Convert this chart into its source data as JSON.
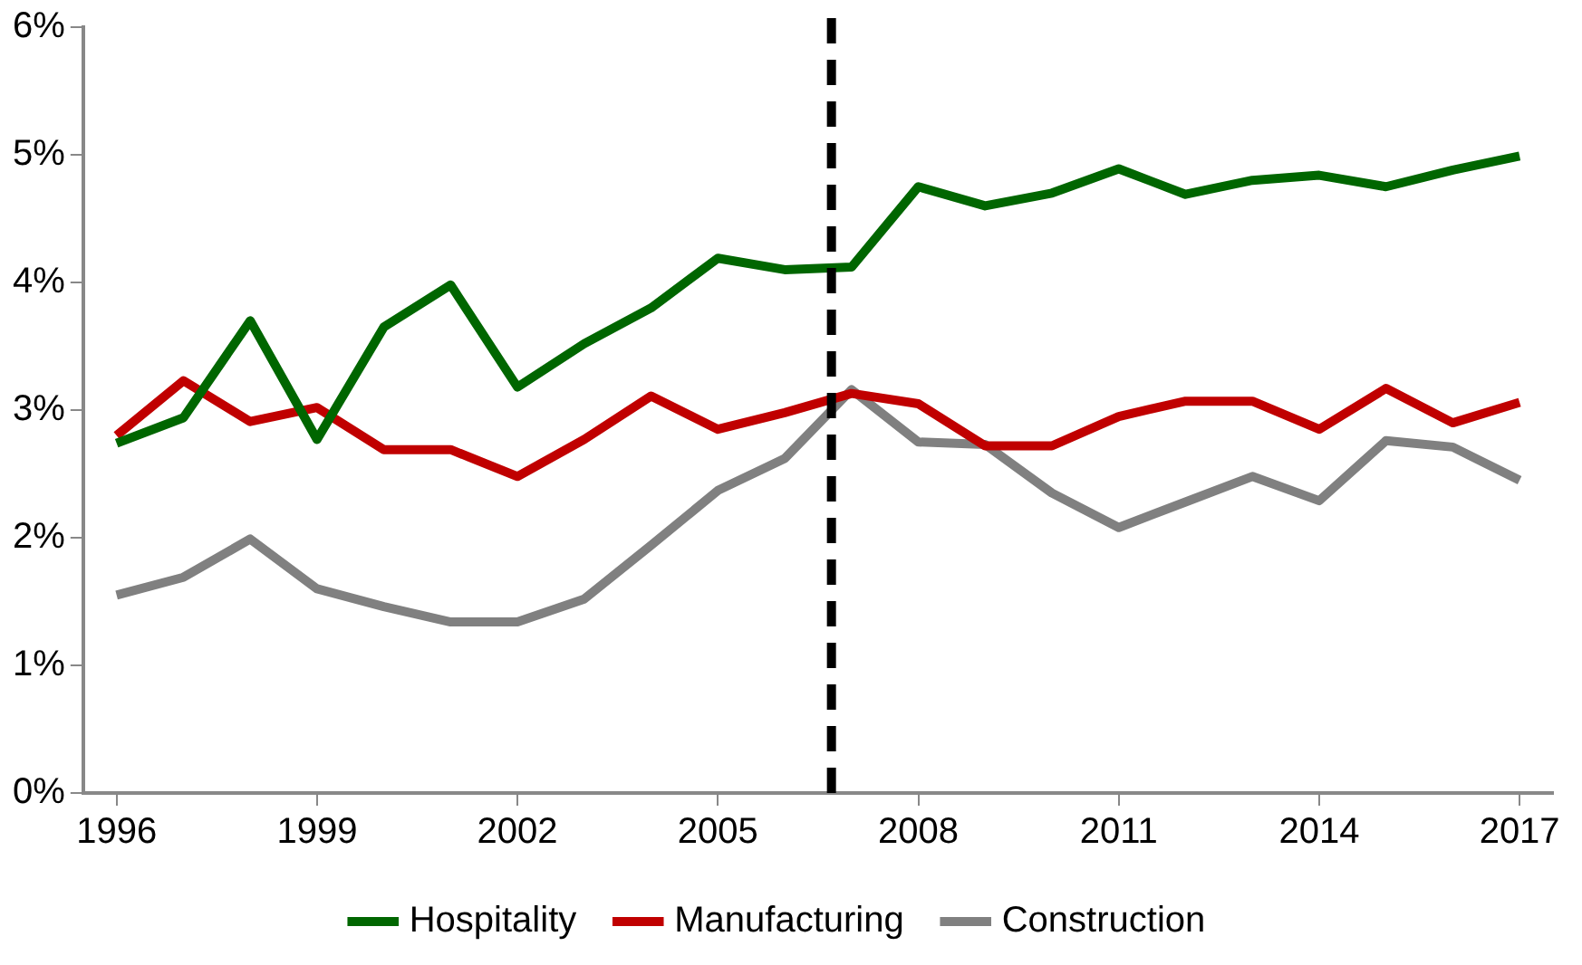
{
  "chart_data": {
    "type": "line",
    "x": [
      1996,
      1997,
      1998,
      1999,
      2000,
      2001,
      2002,
      2003,
      2004,
      2005,
      2006,
      2007,
      2008,
      2009,
      2010,
      2011,
      2012,
      2013,
      2014,
      2015,
      2016,
      2017
    ],
    "series": [
      {
        "name": "Hospitality",
        "color": "#006600",
        "values": [
          2.74,
          2.94,
          3.7,
          2.77,
          3.65,
          3.98,
          3.18,
          3.52,
          3.8,
          4.19,
          4.1,
          4.12,
          4.75,
          4.6,
          4.7,
          4.89,
          4.69,
          4.8,
          4.84,
          4.75,
          4.88,
          4.99
        ]
      },
      {
        "name": "Manufacturing",
        "color": "#c00000",
        "values": [
          2.8,
          3.23,
          2.91,
          3.02,
          2.69,
          2.69,
          2.48,
          2.77,
          3.11,
          2.85,
          2.98,
          3.13,
          3.05,
          2.72,
          2.72,
          2.95,
          3.07,
          3.07,
          2.85,
          3.17,
          2.9,
          3.06
        ]
      },
      {
        "name": "Construction",
        "color": "#808080",
        "values": [
          1.55,
          1.69,
          1.99,
          1.6,
          1.46,
          1.34,
          1.34,
          1.52,
          1.94,
          2.37,
          2.62,
          3.16,
          2.75,
          2.73,
          2.35,
          2.08,
          2.28,
          2.48,
          2.29,
          2.76,
          2.71,
          2.45
        ]
      }
    ],
    "xlim": [
      1995.5,
      2017.5
    ],
    "xticks": [
      1996,
      1999,
      2002,
      2005,
      2008,
      2011,
      2014,
      2017
    ],
    "ylim": [
      0,
      6
    ],
    "yticks": [
      {
        "value": 0,
        "label": "0%"
      },
      {
        "value": 1,
        "label": "1%"
      },
      {
        "value": 2,
        "label": "2%"
      },
      {
        "value": 3,
        "label": "3%"
      },
      {
        "value": 4,
        "label": "4%"
      },
      {
        "value": 5,
        "label": "5%"
      },
      {
        "value": 6,
        "label": "6%"
      }
    ],
    "ref_lines": [
      {
        "axis": "x",
        "value": 2006.7,
        "color": "#000000",
        "line_style": "dashed"
      }
    ],
    "grid": false,
    "legend": "bottom",
    "marker": "none",
    "line_style": "solid"
  }
}
